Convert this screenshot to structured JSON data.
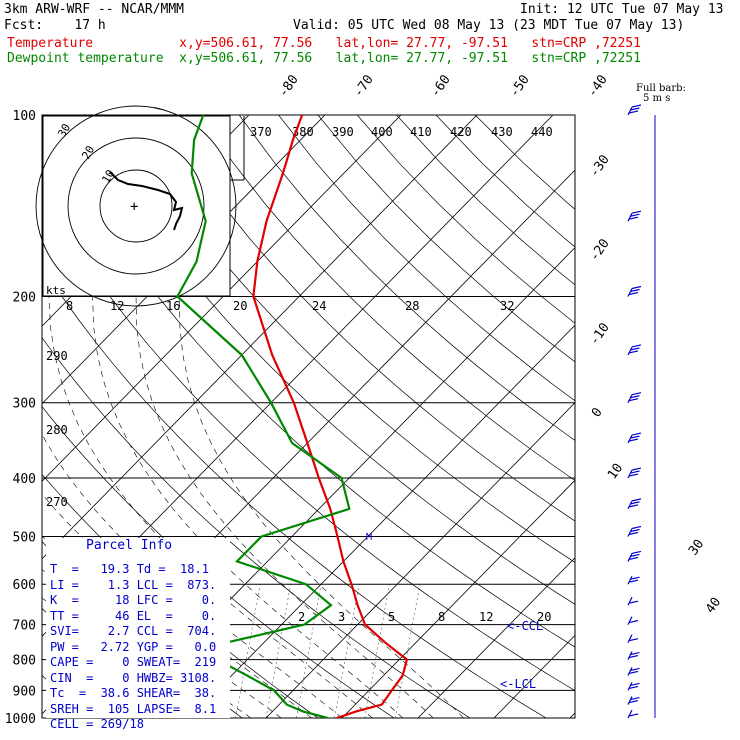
{
  "header": {
    "model": "3km ARW-WRF -- NCAR/MMM",
    "init": "Init: 12 UTC Tue 07 May 13",
    "fcst": "Fcst:    17 h",
    "valid": "Valid: 05 UTC Wed 08 May 13 (23 MDT Tue 07 May 13)",
    "temp_line": "Temperature           x,y=506.61, 77.56   lat,lon= 27.77, -97.51   stn=CRP ,72251",
    "dew_line": "Dewpoint temperature  x,y=506.61, 77.56   lat,lon= 27.77, -97.51   stn=CRP ,72251"
  },
  "colors": {
    "temperature": "#e00000",
    "dewpoint": "#008800",
    "parcel": "#0000cc",
    "barbs": "#0000cc"
  },
  "barb_legend": {
    "line1": "Full barb:",
    "line2": "5 m s"
  },
  "hodograph_label": "kts",
  "parcel": {
    "title": "Parcel Info",
    "rows": [
      "T  =   19.3 Td =  18.1",
      "LI =    1.3 LCL =  873.",
      "K  =     18 LFC =    0.",
      "TT =     46 EL  =    0.",
      "SVI=    2.7 CCL =  704.",
      "PW =   2.72 YGP =   0.0",
      "CAPE =    0 SWEAT=  219",
      "CIN  =    0 HWBZ= 3108.",
      "Tc  =  38.6 SHEAR=  38.",
      "SREH =  105 LAPSE=  8.1",
      "CELL = 269/18"
    ]
  },
  "chart_data": {
    "type": "line",
    "title": "",
    "y_axis": {
      "label": "",
      "ticks": [
        "100",
        "200",
        "300",
        "400",
        "500",
        "600",
        "700",
        "800",
        "900",
        "1000"
      ],
      "scale": "log-pressure"
    },
    "isotherm_labels": [
      "-80",
      "-70",
      "-60",
      "-50",
      "-40",
      "-30",
      "-20",
      "-10",
      "0",
      "10",
      "30",
      "40"
    ],
    "theta_labels": [
      "370",
      "380",
      "390",
      "400",
      "410",
      "420",
      "430",
      "440",
      "290",
      "280",
      "270"
    ],
    "mixing_ratio_labels": [
      "2",
      "3",
      "5",
      "8",
      "12",
      "20"
    ],
    "hodograph_speed_labels": [
      "8",
      "12",
      "16",
      "20",
      "24",
      "28",
      "32"
    ],
    "hodograph_ring_labels": [
      "10",
      "20",
      "30"
    ],
    "lcl_labels": [
      "<-CCL",
      "<-LCL"
    ],
    "series": [
      {
        "name": "Temperature",
        "points": [
          [
            1000,
            19.3
          ],
          [
            975,
            21
          ],
          [
            950,
            23.5
          ],
          [
            900,
            23
          ],
          [
            850,
            22.5
          ],
          [
            800,
            21
          ],
          [
            750,
            16
          ],
          [
            700,
            11
          ],
          [
            650,
            7.5
          ],
          [
            600,
            4
          ],
          [
            550,
            0
          ],
          [
            500,
            -4
          ],
          [
            450,
            -8.5
          ],
          [
            400,
            -14
          ],
          [
            350,
            -20
          ],
          [
            300,
            -27
          ],
          [
            250,
            -36
          ],
          [
            200,
            -46
          ],
          [
            175,
            -50
          ],
          [
            150,
            -54
          ],
          [
            125,
            -58
          ],
          [
            110,
            -61
          ],
          [
            100,
            -63
          ]
        ]
      },
      {
        "name": "Dewpoint temperature",
        "points": [
          [
            1000,
            18.1
          ],
          [
            975,
            14
          ],
          [
            950,
            11
          ],
          [
            900,
            7.5
          ],
          [
            850,
            2
          ],
          [
            800,
            -4
          ],
          [
            750,
            -5
          ],
          [
            700,
            3
          ],
          [
            650,
            4
          ],
          [
            600,
            -2
          ],
          [
            550,
            -14
          ],
          [
            500,
            -14
          ],
          [
            450,
            -6
          ],
          [
            400,
            -11
          ],
          [
            350,
            -22
          ],
          [
            300,
            -30
          ],
          [
            250,
            -40
          ],
          [
            200,
            -56
          ],
          [
            175,
            -58
          ],
          [
            150,
            -62
          ],
          [
            125,
            -70
          ],
          [
            110,
            -74
          ],
          [
            100,
            -76
          ]
        ]
      }
    ],
    "wind_barbs": [
      {
        "p": 100,
        "speed_ms": 15
      },
      {
        "p": 150,
        "speed_ms": 15
      },
      {
        "p": 200,
        "speed_ms": 15
      },
      {
        "p": 250,
        "speed_ms": 15
      },
      {
        "p": 300,
        "speed_ms": 15
      },
      {
        "p": 350,
        "speed_ms": 15
      },
      {
        "p": 400,
        "speed_ms": 15
      },
      {
        "p": 450,
        "speed_ms": 15
      },
      {
        "p": 500,
        "speed_ms": 15
      },
      {
        "p": 550,
        "speed_ms": 15
      },
      {
        "p": 600,
        "speed_ms": 10
      },
      {
        "p": 650,
        "speed_ms": 5
      },
      {
        "p": 700,
        "speed_ms": 5
      },
      {
        "p": 750,
        "speed_ms": 5
      },
      {
        "p": 800,
        "speed_ms": 10
      },
      {
        "p": 850,
        "speed_ms": 10
      },
      {
        "p": 900,
        "speed_ms": 10
      },
      {
        "p": 950,
        "speed_ms": 10
      },
      {
        "p": 1000,
        "speed_ms": 5
      }
    ]
  }
}
